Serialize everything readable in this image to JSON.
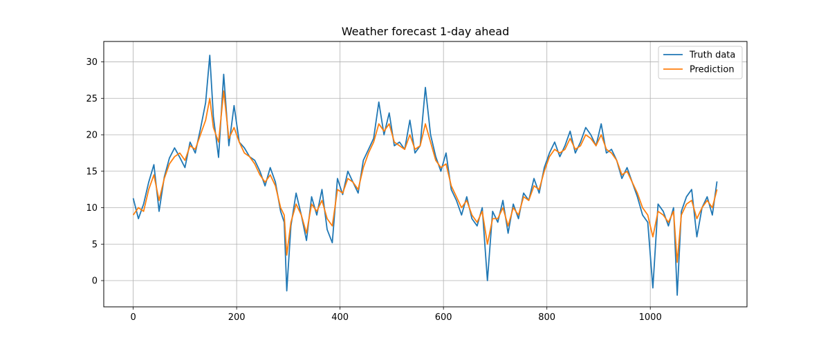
{
  "chart_data": {
    "type": "line",
    "title": "Weather forecast 1-day ahead",
    "xlabel": "",
    "ylabel": "",
    "xlim": [
      -57,
      1187
    ],
    "ylim": [
      -3.6,
      32.8
    ],
    "xticks": [
      0,
      200,
      400,
      600,
      800,
      1000
    ],
    "yticks": [
      0,
      5,
      10,
      15,
      20,
      25,
      30
    ],
    "grid": true,
    "legend_position": "upper right",
    "n_points": 1130,
    "series": [
      {
        "name": "Truth data",
        "color": "#1f77b4",
        "x": [
          0,
          10,
          20,
          30,
          40,
          50,
          60,
          70,
          80,
          90,
          100,
          110,
          120,
          130,
          140,
          148,
          155,
          165,
          175,
          185,
          195,
          205,
          215,
          225,
          235,
          245,
          255,
          265,
          275,
          285,
          292,
          297,
          305,
          315,
          325,
          335,
          345,
          355,
          365,
          375,
          385,
          395,
          405,
          415,
          425,
          435,
          445,
          455,
          465,
          475,
          485,
          495,
          505,
          515,
          525,
          535,
          545,
          555,
          565,
          575,
          585,
          595,
          605,
          615,
          625,
          635,
          645,
          655,
          665,
          675,
          685,
          695,
          705,
          715,
          725,
          735,
          745,
          755,
          765,
          775,
          785,
          795,
          805,
          815,
          825,
          835,
          845,
          855,
          865,
          875,
          885,
          895,
          905,
          915,
          925,
          935,
          945,
          955,
          965,
          975,
          985,
          995,
          1005,
          1015,
          1025,
          1035,
          1045,
          1052,
          1060,
          1070,
          1080,
          1090,
          1100,
          1110,
          1120,
          1129
        ],
        "values": [
          11.3,
          8.5,
          10.5,
          13.5,
          15.9,
          9.5,
          14.2,
          16.8,
          18.2,
          16.9,
          15.5,
          19.0,
          17.5,
          20.8,
          24.4,
          30.9,
          22.5,
          16.9,
          28.3,
          18.5,
          24.0,
          19.0,
          18.2,
          17.0,
          16.5,
          15.0,
          13.0,
          15.5,
          13.5,
          9.5,
          8.0,
          -1.4,
          7.5,
          12.0,
          9.0,
          5.5,
          11.5,
          9.0,
          12.5,
          7.0,
          5.2,
          14.0,
          11.8,
          15.0,
          13.5,
          12.0,
          16.5,
          18.0,
          19.5,
          24.5,
          20.0,
          23.0,
          18.5,
          19.0,
          18.0,
          22.0,
          17.5,
          18.5,
          26.5,
          20.0,
          17.0,
          15.0,
          17.5,
          12.5,
          11.0,
          9.0,
          11.5,
          8.5,
          7.5,
          10.0,
          0.0,
          9.5,
          8.0,
          11.0,
          6.5,
          10.5,
          8.5,
          12.0,
          11.0,
          14.0,
          12.0,
          15.5,
          17.5,
          19.0,
          17.0,
          18.5,
          20.5,
          17.5,
          19.0,
          21.0,
          20.0,
          18.5,
          21.5,
          17.5,
          18.0,
          16.5,
          14.0,
          15.5,
          13.5,
          11.5,
          9.0,
          8.0,
          -1.0,
          10.5,
          9.5,
          7.5,
          10.0,
          -2.0,
          9.5,
          11.5,
          12.5,
          6.0,
          10.0,
          11.5,
          9.0,
          13.6
        ]
      },
      {
        "name": "Prediction",
        "color": "#ff7f0e",
        "x": [
          0,
          10,
          20,
          30,
          40,
          50,
          60,
          70,
          80,
          90,
          100,
          110,
          120,
          130,
          140,
          148,
          155,
          165,
          175,
          185,
          195,
          205,
          215,
          225,
          235,
          245,
          255,
          265,
          275,
          285,
          292,
          297,
          305,
          315,
          325,
          335,
          345,
          355,
          365,
          375,
          385,
          395,
          405,
          415,
          425,
          435,
          445,
          455,
          465,
          475,
          485,
          495,
          505,
          515,
          525,
          535,
          545,
          555,
          565,
          575,
          585,
          595,
          605,
          615,
          625,
          635,
          645,
          655,
          665,
          675,
          685,
          695,
          705,
          715,
          725,
          735,
          745,
          755,
          765,
          775,
          785,
          795,
          805,
          815,
          825,
          835,
          845,
          855,
          865,
          875,
          885,
          895,
          905,
          915,
          925,
          935,
          945,
          955,
          965,
          975,
          985,
          995,
          1005,
          1015,
          1025,
          1035,
          1045,
          1052,
          1060,
          1070,
          1080,
          1090,
          1100,
          1110,
          1120,
          1129
        ],
        "values": [
          9.0,
          10.0,
          9.5,
          12.5,
          14.5,
          11.0,
          14.0,
          16.0,
          17.0,
          17.5,
          16.5,
          18.5,
          18.0,
          20.0,
          22.0,
          25.0,
          21.0,
          19.0,
          26.0,
          19.5,
          21.0,
          19.0,
          17.5,
          17.0,
          16.0,
          14.5,
          13.5,
          14.5,
          13.0,
          10.0,
          9.0,
          3.5,
          8.0,
          10.5,
          9.0,
          6.5,
          10.5,
          9.5,
          11.0,
          8.5,
          7.5,
          12.5,
          12.0,
          14.0,
          13.5,
          12.5,
          15.5,
          17.5,
          19.0,
          21.5,
          20.5,
          21.5,
          19.0,
          18.5,
          18.0,
          20.0,
          18.0,
          18.5,
          21.5,
          19.0,
          16.5,
          15.5,
          16.0,
          13.0,
          11.5,
          10.0,
          11.0,
          9.0,
          8.0,
          9.5,
          5.0,
          8.5,
          8.5,
          10.0,
          7.5,
          10.0,
          9.0,
          11.5,
          11.0,
          13.0,
          12.5,
          15.0,
          17.0,
          18.0,
          17.5,
          18.0,
          19.5,
          18.0,
          18.5,
          20.0,
          19.5,
          18.5,
          20.0,
          18.0,
          17.5,
          16.5,
          14.5,
          15.0,
          13.5,
          12.0,
          10.0,
          9.0,
          6.0,
          9.5,
          9.0,
          8.0,
          9.5,
          2.5,
          9.0,
          10.5,
          11.0,
          8.5,
          10.0,
          11.0,
          10.0,
          12.5
        ]
      }
    ]
  }
}
